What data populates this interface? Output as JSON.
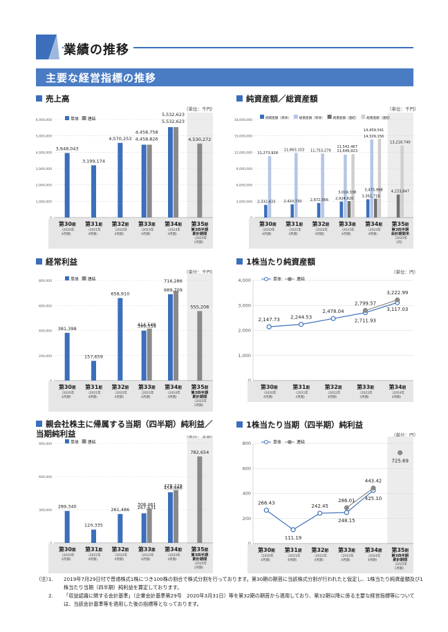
{
  "page": {
    "title": "業績の推移",
    "section_title": "主要な経営指標の推移"
  },
  "colors": {
    "accent": "#3b6fbc",
    "single_bar": "#3b6fbc",
    "consolidated_bar": "#8a8a8a",
    "net_assets_single": "#3b6fbc",
    "total_assets_single": "#b5c6e6",
    "net_assets_consolidated": "#707070",
    "total_assets_consolidated": "#cfcfcf",
    "forecast_bg": "#ececec",
    "line_single": "#3b6fbc",
    "line_consolidated": "#8a8a8a"
  },
  "legend": {
    "single": "単体",
    "consolidated": "連結",
    "net_assets_single": "純資産額（単体）",
    "total_assets_single": "総資産額（単体）",
    "net_assets_consolidated": "純資産額（連結）",
    "total_assets_consolidated": "総資産額（連結）"
  },
  "periods": [
    {
      "num": "第30",
      "unit": "期",
      "sub1": "（2020年",
      "sub2": "4月期）"
    },
    {
      "num": "第31",
      "unit": "期",
      "sub1": "（2021年",
      "sub2": "4月期）"
    },
    {
      "num": "第32",
      "unit": "期",
      "sub1": "（2022年",
      "sub2": "4月期）"
    },
    {
      "num": "第33",
      "unit": "期",
      "sub1": "（2023年",
      "sub2": "4月期）"
    },
    {
      "num": "第34",
      "unit": "期",
      "sub1": "（2024年",
      "sub2": "4月期）"
    }
  ],
  "period_35_q3": {
    "num": "第35",
    "unit": "期",
    "l1": "第3四半期",
    "l2": "累計期間",
    "sub1": "（2025年",
    "sub2": "1月期）"
  },
  "period_35_q3_end": {
    "num": "第35",
    "unit": "期",
    "l1": "第3四半期",
    "l2": "会計期間末",
    "sub1": "（2025年",
    "sub2": "1月）"
  },
  "chart_data": [
    {
      "id": "sales",
      "type": "bar",
      "title": "売上高",
      "unit": "（単位：千円）",
      "yticks": [
        "0",
        "1,000,000",
        "2,000,000",
        "3,000,000",
        "4,000,000",
        "5,000,000",
        "6,000,000"
      ],
      "ylim": [
        0,
        6000000
      ],
      "series": [
        {
          "name": "単体",
          "values": [
            3948043,
            3199174,
            4570253,
            4458826,
            5532623,
            null
          ],
          "labels": [
            "3,948,043",
            "3,199,174",
            "4,570,253",
            "4,458,826",
            "5,532,623",
            ""
          ]
        },
        {
          "name": "連結",
          "values": [
            null,
            null,
            null,
            4458758,
            5532623,
            4530272
          ],
          "labels": [
            "",
            "",
            "",
            "4,458,758",
            "5,532,623",
            "4,530,272"
          ]
        }
      ]
    },
    {
      "id": "assets",
      "type": "bar",
      "title": "純資産額／総資産額",
      "unit": "（単位：千円）",
      "yticks": [
        "0",
        "3,000,000",
        "6,000,000",
        "9,000,000",
        "12,000,000",
        "15,000,000",
        "18,000,000"
      ],
      "ylim": [
        0,
        18000000
      ],
      "series": [
        {
          "name": "純資産額（単体）",
          "values": [
            2332433,
            2420730,
            2672566,
            2924820,
            3361716,
            null
          ],
          "labels": [
            "2,332,433",
            "2,420,730",
            "2,672,566",
            "2,924,820",
            "3,361,716",
            ""
          ]
        },
        {
          "name": "総資産額（単体）",
          "values": [
            11273928,
            11863153,
            11753279,
            11542467,
            14329156,
            null
          ],
          "labels": [
            "11,273,928",
            "11,863,153",
            "11,753,279",
            "11,542,467",
            "14,329,156",
            ""
          ]
        },
        {
          "name": "純資産額（連結）",
          "values": [
            null,
            null,
            null,
            3019338,
            3475998,
            4233847
          ],
          "labels": [
            "",
            "",
            "",
            "3,019,338",
            "3,475,998",
            "4,233,847"
          ]
        },
        {
          "name": "総資産額（連結）",
          "values": [
            null,
            null,
            null,
            11649923,
            14459541,
            13218740
          ],
          "labels": [
            "",
            "",
            "",
            "11,649,923",
            "14,459,541",
            "13,218,740"
          ]
        }
      ]
    },
    {
      "id": "ordinary",
      "type": "bar",
      "title": "経常利益",
      "unit": "（単位：千円）",
      "yticks": [
        "0",
        "200,000",
        "400,000",
        "600,000",
        "800,000"
      ],
      "ylim": [
        0,
        800000
      ],
      "series": [
        {
          "name": "単体",
          "values": [
            381398,
            157659,
            658910,
            399554,
            689709,
            null
          ],
          "labels": [
            "381,398",
            "157,659",
            "658,910",
            "399,554",
            "689,709",
            ""
          ]
        },
        {
          "name": "連結",
          "values": [
            null,
            null,
            null,
            414546,
            716286,
            555208
          ],
          "labels": [
            "",
            "",
            "",
            "414,546",
            "716,286",
            "555,208"
          ]
        }
      ]
    },
    {
      "id": "bps",
      "type": "line",
      "title": "1株当たり純資産額",
      "unit": "（単位：円）",
      "yticks": [
        "0",
        "1,000",
        "2,000",
        "3,000",
        "4,000"
      ],
      "ylim": [
        0,
        4000
      ],
      "series": [
        {
          "name": "単体",
          "values": [
            2147.73,
            2244.53,
            2478.04,
            2711.93,
            3117.03
          ],
          "labels": [
            "2,147.73",
            "2,244.53",
            "2,478.04",
            "2,711.93",
            "3,117.03"
          ]
        },
        {
          "name": "連結",
          "values": [
            null,
            null,
            null,
            2799.57,
            3222.99
          ],
          "labels": [
            "",
            "",
            "",
            "2,799.57",
            "3,222.99"
          ]
        }
      ]
    },
    {
      "id": "net_income",
      "type": "bar",
      "title": "親会社株主に帰属する当期（四半期）純利益／",
      "title2": "当期純利益",
      "unit": "（単位：千円）",
      "yticks": [
        "0",
        "300,000",
        "600,000",
        "900,000"
      ],
      "ylim": [
        0,
        900000
      ],
      "series": [
        {
          "name": "単体",
          "values": [
            289340,
            120335,
            261486,
            267631,
            458466,
            null
          ],
          "labels": [
            "289,340",
            "120,335",
            "261,486",
            "267,631",
            "458,466",
            ""
          ]
        },
        {
          "name": "連結",
          "values": [
            null,
            null,
            null,
            308461,
            478229,
            782654
          ],
          "labels": [
            "",
            "",
            "",
            "308,461",
            "478,229",
            "782,654"
          ]
        }
      ]
    },
    {
      "id": "eps",
      "type": "line",
      "title": "1株当たり当期（四半期）純利益",
      "unit": "（単位：円）",
      "yticks": [
        "0",
        "200",
        "400",
        "600",
        "800"
      ],
      "ylim": [
        0,
        800
      ],
      "series": [
        {
          "name": "単体",
          "values": [
            266.43,
            111.19,
            242.45,
            248.15,
            425.1,
            null
          ],
          "labels": [
            "266.43",
            "111.19",
            "242.45",
            "248.15",
            "425.10",
            ""
          ]
        },
        {
          "name": "連結",
          "values": [
            null,
            null,
            null,
            286.01,
            443.42,
            725.69
          ],
          "labels": [
            "",
            "",
            "",
            "286.01",
            "443.42",
            "725.69"
          ]
        }
      ]
    }
  ],
  "notes": {
    "label": "（注）",
    "items": [
      {
        "num": "1.",
        "text": "2019年7月29日付で普通株式1株につき100株の割合で株式分割を行っております。第30期の期首に当該株式分割が行われたと仮定し、1株当たり純資産額及び1株当たり当期（四半期）純利益を算定しております。"
      },
      {
        "num": "2.",
        "text": "「収益認識に関する会計基準」（企業会計基準第29号　2020年3月31日）等を第32期の期首から適用しており、第32期以降に係る主要な経営指標等については、当該会計基準等を適用した後の指標等となっております。"
      }
    ]
  }
}
